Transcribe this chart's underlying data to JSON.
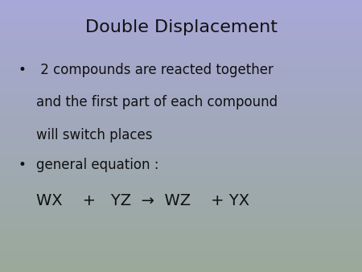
{
  "title": "Double Displacement",
  "title_fontsize": 16,
  "bullet1_line1": " 2 compounds are reacted together",
  "bullet1_line2": "and the first part of each compound",
  "bullet1_line3": "will switch places",
  "bullet2": "general equation :",
  "equation": "WX    +   YZ  →  WZ    + YX",
  "text_fontsize": 12,
  "equation_fontsize": 14,
  "bullet_char": "•",
  "bg_color_top": "#a8a8d8",
  "bg_color_bottom": "#9aaa9a",
  "text_color": "#111111"
}
